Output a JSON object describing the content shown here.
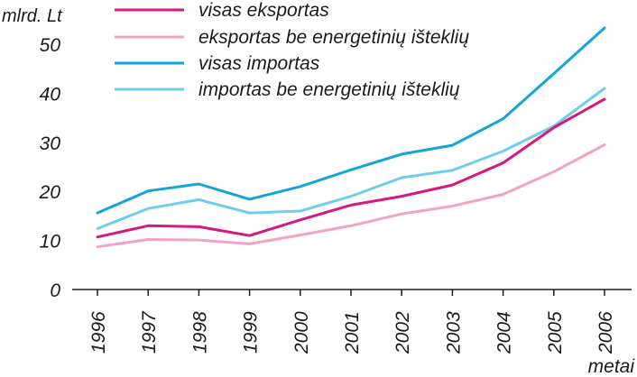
{
  "chart_data": {
    "type": "line",
    "title": "",
    "ylabel": "mlrd. Lt",
    "xlabel": "metai",
    "ylim": [
      0,
      55
    ],
    "yticks": [
      0,
      10,
      20,
      30,
      40,
      50
    ],
    "ytick_labels": [
      "0",
      "10",
      "20",
      "30",
      "40",
      "50"
    ],
    "categories": [
      "1996",
      "1997",
      "1998",
      "1999",
      "2000",
      "2001",
      "2002",
      "2003",
      "2004",
      "2005",
      "2006"
    ],
    "series": [
      {
        "name": "visas eksportas",
        "color": "#d6187f",
        "values": [
          10.7,
          13.0,
          12.8,
          11.0,
          14.2,
          17.2,
          19.0,
          21.3,
          25.8,
          33.0,
          38.8
        ]
      },
      {
        "name": "eksportas be energetinių išteklių",
        "color": "#f0a3c6",
        "values": [
          8.7,
          10.2,
          10.1,
          9.3,
          11.1,
          13.0,
          15.4,
          17.0,
          19.4,
          24.0,
          29.5
        ]
      },
      {
        "name": "visas importas",
        "color": "#14a5d7",
        "values": [
          15.6,
          20.1,
          21.5,
          18.4,
          21.0,
          24.4,
          27.6,
          29.4,
          34.8,
          44.0,
          53.3
        ]
      },
      {
        "name": "importas be energetinių išteklių",
        "color": "#6fcdec",
        "values": [
          12.4,
          16.5,
          18.3,
          15.6,
          16.0,
          19.0,
          22.8,
          24.3,
          28.2,
          33.3,
          41.0
        ]
      }
    ],
    "legend_position": "top"
  }
}
